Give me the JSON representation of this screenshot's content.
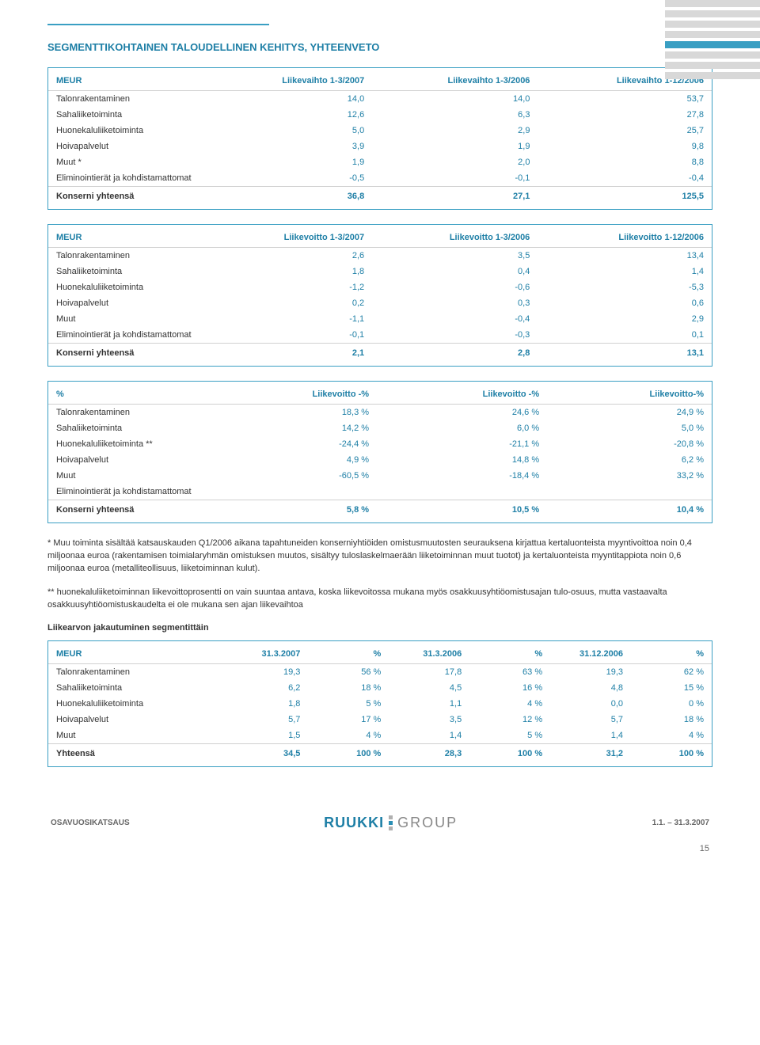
{
  "title": "SEGMENTTIKOHTAINEN TALOUDELLINEN KEHITYS, YHTEENVETO",
  "colors": {
    "accent": "#1e7fa6",
    "border": "#3a9fc3",
    "text": "#333333",
    "muted": "#666666"
  },
  "table1": {
    "columns": [
      "MEUR",
      "Liikevaihto 1-3/2007",
      "Liikevaihto 1-3/2006",
      "Liikevaihto 1-12/2006"
    ],
    "rows": [
      [
        "Talonrakentaminen",
        "14,0",
        "14,0",
        "53,7"
      ],
      [
        "Sahaliiketoiminta",
        "12,6",
        "6,3",
        "27,8"
      ],
      [
        "Huonekaluliiketoiminta",
        "5,0",
        "2,9",
        "25,7"
      ],
      [
        "Hoivapalvelut",
        "3,9",
        "1,9",
        "9,8"
      ],
      [
        "Muut *",
        "1,9",
        "2,0",
        "8,8"
      ],
      [
        "Eliminointierät ja kohdistamattomat",
        "-0,5",
        "-0,1",
        "-0,4"
      ]
    ],
    "total": [
      "Konserni yhteensä",
      "36,8",
      "27,1",
      "125,5"
    ]
  },
  "table2": {
    "columns": [
      "MEUR",
      "Liikevoitto 1-3/2007",
      "Liikevoitto 1-3/2006",
      "Liikevoitto 1-12/2006"
    ],
    "rows": [
      [
        "Talonrakentaminen",
        "2,6",
        "3,5",
        "13,4"
      ],
      [
        "Sahaliiketoiminta",
        "1,8",
        "0,4",
        "1,4"
      ],
      [
        "Huonekaluliiketoiminta",
        "-1,2",
        "-0,6",
        "-5,3"
      ],
      [
        "Hoivapalvelut",
        "0,2",
        "0,3",
        "0,6"
      ],
      [
        "Muut",
        "-1,1",
        "-0,4",
        "2,9"
      ],
      [
        "Eliminointierät ja kohdistamattomat",
        "-0,1",
        "-0,3",
        "0,1"
      ]
    ],
    "total": [
      "Konserni yhteensä",
      "2,1",
      "2,8",
      "13,1"
    ]
  },
  "table3": {
    "columns": [
      "%",
      "Liikevoitto -%",
      "Liikevoitto -%",
      "Liikevoitto-%"
    ],
    "rows": [
      [
        "Talonrakentaminen",
        "18,3 %",
        "24,6 %",
        "24,9 %"
      ],
      [
        "Sahaliiketoiminta",
        "14,2 %",
        "6,0 %",
        "5,0 %"
      ],
      [
        "Huonekaluliiketoiminta **",
        "-24,4 %",
        "-21,1 %",
        "-20,8 %"
      ],
      [
        "Hoivapalvelut",
        "4,9 %",
        "14,8 %",
        "6,2 %"
      ],
      [
        "Muut",
        "-60,5 %",
        "-18,4 %",
        "33,2 %"
      ],
      [
        "Eliminointierät ja kohdistamattomat",
        "",
        "",
        ""
      ]
    ],
    "total": [
      "Konserni yhteensä",
      "5,8 %",
      "10,5 %",
      "10,4 %"
    ]
  },
  "note1": "* Muu toiminta sisältää katsauskauden Q1/2006 aikana tapahtuneiden konserniyhtiöiden omistusmuutosten seurauksena kirjattua kertaluonteista myyntivoittoa noin 0,4 miljoonaa euroa (rakentamisen toimialaryhmän omistuksen muutos, sisältyy tuloslaskelmaerään liiketoiminnan muut tuotot) ja kertaluonteista myyntitappiota noin 0,6 miljoonaa euroa (metalliteollisuus, liiketoiminnan kulut).",
  "note2": "** huonekaluliiketoiminnan liikevoittoprosentti on vain suuntaa antava, koska liikevoitossa mukana myös osakkuusyhtiöomistusajan tulo-osuus, mutta vastaavalta osakkuusyhtiöomistuskaudelta ei ole mukana sen ajan liikevaihtoa",
  "subhead": "Liikearvon jakautuminen segmentittäin",
  "table4": {
    "columns": [
      "MEUR",
      "31.3.2007",
      "%",
      "31.3.2006",
      "%",
      "31.12.2006",
      "%"
    ],
    "rows": [
      [
        "Talonrakentaminen",
        "19,3",
        "56 %",
        "17,8",
        "63 %",
        "19,3",
        "62 %"
      ],
      [
        "Sahaliiketoiminta",
        "6,2",
        "18 %",
        "4,5",
        "16 %",
        "4,8",
        "15 %"
      ],
      [
        "Huonekaluliiketoiminta",
        "1,8",
        "5 %",
        "1,1",
        "4 %",
        "0,0",
        "0 %"
      ],
      [
        "Hoivapalvelut",
        "5,7",
        "17 %",
        "3,5",
        "12 %",
        "5,7",
        "18 %"
      ],
      [
        "Muut",
        "1,5",
        "4 %",
        "1,4",
        "5 %",
        "1,4",
        "4 %"
      ]
    ],
    "total": [
      "Yhteensä",
      "34,5",
      "100 %",
      "28,3",
      "100 %",
      "31,2",
      "100 %"
    ]
  },
  "footer": {
    "left": "OSAVUOSIKATSAUS",
    "logo1": "RUUKKI",
    "logo2": "GROUP",
    "right": "1.1. – 31.3.2007"
  },
  "pagenum": "15"
}
